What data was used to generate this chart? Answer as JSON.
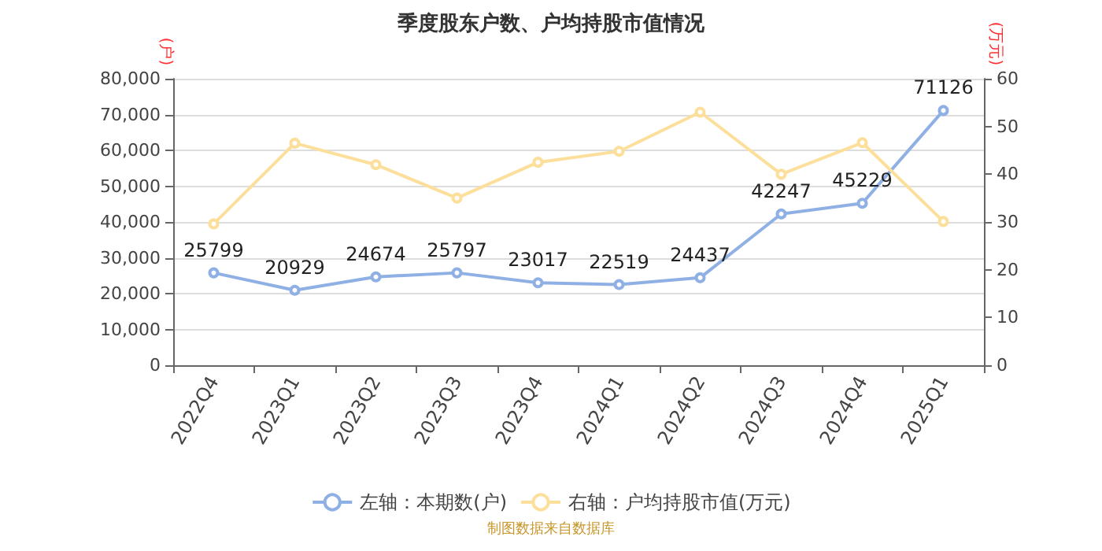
{
  "chart_data": {
    "type": "line",
    "title": "季度股东户数、户均持股市值情况",
    "ylabel": "(户)",
    "y2label": "(万元)",
    "categories": [
      "2022Q4",
      "2023Q1",
      "2023Q2",
      "2023Q3",
      "2023Q4",
      "2024Q1",
      "2024Q2",
      "2024Q3",
      "2024Q4",
      "2025Q1"
    ],
    "series": [
      {
        "name": "左轴：本期数(户)",
        "color": "#8fb0e4",
        "values": [
          25799,
          20929,
          24674,
          25797,
          23017,
          22519,
          24437,
          42247,
          45229,
          71126
        ],
        "data_labels": true
      },
      {
        "name": "右轴：户均持股市值(万元)",
        "color": "#fddf9c",
        "axis": "y2",
        "values": [
          29.6,
          46.5,
          42,
          35,
          42.5,
          44.8,
          53,
          40,
          46.6,
          30.1
        ]
      }
    ],
    "ylim": [
      0,
      80000
    ],
    "yticks": [
      0,
      {
        "value": 10000,
        "label": "10,000"
      },
      {
        "value": 20000,
        "label": "20,000"
      },
      {
        "value": 30000,
        "label": "30,000"
      },
      {
        "value": 40000,
        "label": "40,000"
      },
      {
        "value": 50000,
        "label": "50,000"
      },
      {
        "value": 60000,
        "label": "60,000"
      },
      {
        "value": 70000,
        "label": "70,000"
      },
      {
        "value": 80000,
        "label": "80,000"
      }
    ],
    "y2lim": [
      0,
      60
    ],
    "y2ticks": [
      0,
      10,
      20,
      30,
      40,
      50,
      60
    ],
    "grid": "y",
    "legend": "bottom",
    "marker": "circle",
    "annotations": [
      "制图数据来自数据库"
    ]
  }
}
